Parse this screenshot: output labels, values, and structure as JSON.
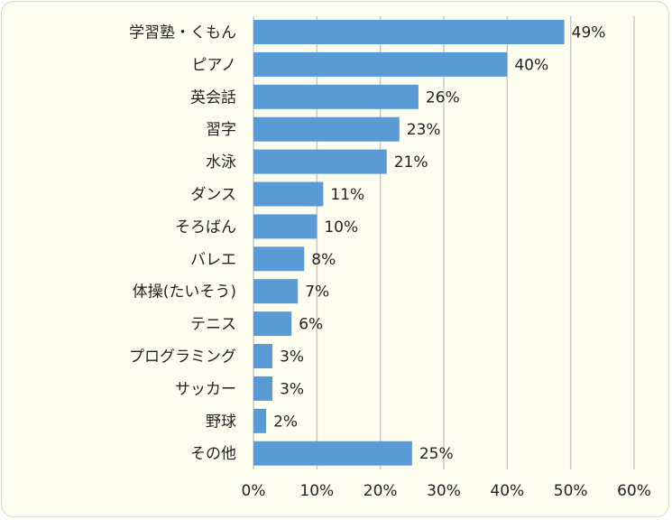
{
  "chart_data": {
    "type": "bar",
    "orientation": "horizontal",
    "categories": [
      "学習塾・くもん",
      "ピアノ",
      "英会話",
      "習字",
      "水泳",
      "ダンス",
      "そろばん",
      "バレエ",
      "体操(たいそう)",
      "テニス",
      "プログラミング",
      "サッカー",
      "野球",
      "その他"
    ],
    "values": [
      49,
      40,
      26,
      23,
      21,
      11,
      10,
      8,
      7,
      6,
      3,
      3,
      2,
      25
    ],
    "data_labels": [
      "49%",
      "40%",
      "26%",
      "23%",
      "21%",
      "11%",
      "10%",
      "8%",
      "7%",
      "6%",
      "3%",
      "3%",
      "2%",
      "25%"
    ],
    "xlim": [
      0,
      60
    ],
    "x_ticks": [
      0,
      10,
      20,
      30,
      40,
      50,
      60
    ],
    "x_tick_labels": [
      "0%",
      "10%",
      "20%",
      "30%",
      "40%",
      "50%",
      "60%"
    ],
    "grid": "vertical",
    "legend": "none",
    "bar_color": "#5b9bd5",
    "grid_color": "#c8c8c8",
    "background_color": "#fefef0"
  }
}
